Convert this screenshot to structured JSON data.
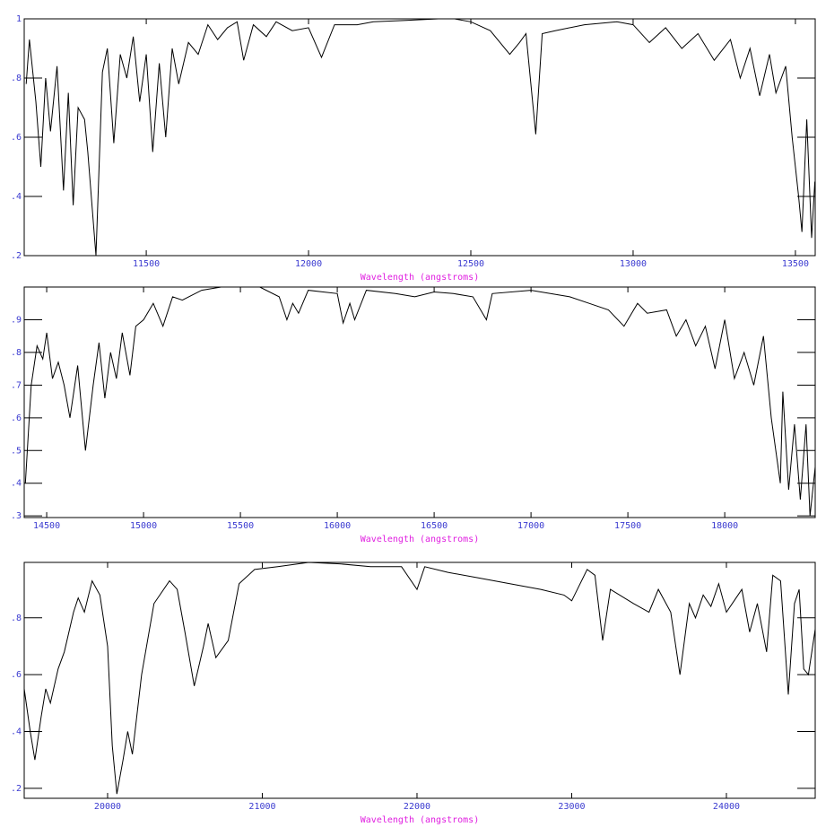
{
  "chart_data": [
    {
      "type": "line",
      "xlabel": "Wavelength (angstroms)",
      "xlim": [
        11124,
        13561
      ],
      "ylim": [
        0.2,
        1.0
      ],
      "xticks": [
        11500,
        12000,
        12500,
        13000,
        13500
      ],
      "yticks": [
        {
          "value": 0.2,
          "label": ".2"
        },
        {
          "value": 0.4,
          "label": ".4"
        },
        {
          "value": 0.6,
          "label": ".6"
        },
        {
          "value": 0.8,
          "label": ".8"
        },
        1
      ],
      "color": "#000000",
      "x": [
        11130,
        11140,
        11160,
        11175,
        11190,
        11205,
        11225,
        11245,
        11260,
        11275,
        11290,
        11310,
        11320,
        11345,
        11365,
        11380,
        11400,
        11420,
        11440,
        11460,
        11480,
        11500,
        11520,
        11540,
        11560,
        11580,
        11600,
        11630,
        11660,
        11690,
        11720,
        11750,
        11780,
        11800,
        11830,
        11870,
        11900,
        11950,
        12000,
        12040,
        12080,
        12150,
        12200,
        12300,
        12400,
        12450,
        12500,
        12560,
        12620,
        12650,
        12670,
        12700,
        12720,
        12760,
        12850,
        12950,
        13000,
        13050,
        13100,
        13150,
        13200,
        13250,
        13300,
        13330,
        13360,
        13390,
        13420,
        13440,
        13470,
        13490,
        13510,
        13520,
        13535,
        13550,
        13560
      ],
      "values": [
        0.78,
        0.93,
        0.72,
        0.5,
        0.8,
        0.62,
        0.84,
        0.42,
        0.75,
        0.37,
        0.7,
        0.66,
        0.55,
        0.2,
        0.82,
        0.9,
        0.58,
        0.88,
        0.8,
        0.94,
        0.72,
        0.88,
        0.55,
        0.85,
        0.6,
        0.9,
        0.78,
        0.92,
        0.88,
        0.98,
        0.93,
        0.97,
        0.99,
        0.86,
        0.98,
        0.94,
        0.99,
        0.96,
        0.97,
        0.87,
        0.98,
        0.98,
        0.99,
        0.995,
        1.0,
        1.0,
        0.99,
        0.96,
        0.88,
        0.92,
        0.95,
        0.61,
        0.95,
        0.96,
        0.98,
        0.99,
        0.98,
        0.92,
        0.97,
        0.9,
        0.95,
        0.86,
        0.93,
        0.8,
        0.9,
        0.74,
        0.88,
        0.75,
        0.84,
        0.6,
        0.4,
        0.28,
        0.66,
        0.26,
        0.45
      ]
    },
    {
      "type": "line",
      "xlabel": "Wavelength (angstroms)",
      "xlim": [
        14384,
        18467
      ],
      "ylim": [
        0.295,
        1.0
      ],
      "xticks": [
        14500,
        15000,
        15500,
        16000,
        16500,
        17000,
        17500,
        18000
      ],
      "yticks": [
        {
          "value": 0.3,
          "label": ".3"
        },
        {
          "value": 0.4,
          "label": ".4"
        },
        {
          "value": 0.5,
          "label": ".5"
        },
        {
          "value": 0.6,
          "label": ".6"
        },
        {
          "value": 0.7,
          "label": ".7"
        },
        {
          "value": 0.8,
          "label": ".8"
        },
        {
          "value": 0.9,
          "label": ".9"
        }
      ],
      "color": "#000000",
      "x": [
        14390,
        14420,
        14450,
        14480,
        14500,
        14530,
        14560,
        14590,
        14620,
        14660,
        14700,
        14740,
        14770,
        14800,
        14830,
        14860,
        14890,
        14930,
        14960,
        15000,
        15050,
        15100,
        15150,
        15200,
        15300,
        15400,
        15600,
        15700,
        15740,
        15770,
        15800,
        15850,
        16000,
        16030,
        16065,
        16090,
        16150,
        16300,
        16400,
        16500,
        16600,
        16700,
        16770,
        16800,
        17000,
        17200,
        17300,
        17400,
        17480,
        17550,
        17600,
        17700,
        17750,
        17800,
        17850,
        17900,
        17950,
        18000,
        18050,
        18100,
        18150,
        18200,
        18240,
        18287,
        18300,
        18330,
        18360,
        18390,
        18420,
        18440,
        18467
      ],
      "values": [
        0.4,
        0.7,
        0.82,
        0.78,
        0.86,
        0.72,
        0.77,
        0.7,
        0.6,
        0.76,
        0.5,
        0.7,
        0.83,
        0.66,
        0.8,
        0.72,
        0.86,
        0.73,
        0.88,
        0.9,
        0.95,
        0.88,
        0.97,
        0.96,
        0.99,
        1.0,
        1.0,
        0.97,
        0.9,
        0.95,
        0.92,
        0.99,
        0.98,
        0.89,
        0.95,
        0.9,
        0.99,
        0.98,
        0.97,
        0.985,
        0.98,
        0.97,
        0.9,
        0.98,
        0.99,
        0.97,
        0.95,
        0.93,
        0.88,
        0.95,
        0.92,
        0.93,
        0.85,
        0.9,
        0.82,
        0.88,
        0.75,
        0.9,
        0.72,
        0.8,
        0.7,
        0.85,
        0.6,
        0.4,
        0.68,
        0.38,
        0.58,
        0.35,
        0.58,
        0.3,
        0.45
      ]
    },
    {
      "type": "line",
      "xlabel": "Wavelength (angstroms)",
      "xlim": [
        19461,
        24574
      ],
      "ylim": [
        0.165,
        0.995
      ],
      "xticks": [
        20000,
        21000,
        22000,
        23000,
        24000
      ],
      "yticks": [
        {
          "value": 0.2,
          "label": ".2"
        },
        {
          "value": 0.4,
          "label": ".4"
        },
        {
          "value": 0.6,
          "label": ".6"
        },
        {
          "value": 0.8,
          "label": ".8"
        }
      ],
      "color": "#000000",
      "x": [
        19461,
        19500,
        19530,
        19570,
        19600,
        19630,
        19680,
        19720,
        19780,
        19810,
        19850,
        19900,
        19950,
        20000,
        20030,
        20060,
        20100,
        20130,
        20160,
        20220,
        20300,
        20400,
        20450,
        20500,
        20560,
        20620,
        20650,
        20700,
        20780,
        20850,
        20950,
        21100,
        21300,
        21500,
        21700,
        21900,
        22000,
        22050,
        22200,
        22400,
        22600,
        22800,
        22950,
        23000,
        23100,
        23150,
        23200,
        23250,
        23400,
        23500,
        23560,
        23640,
        23700,
        23760,
        23800,
        23850,
        23900,
        23950,
        24000,
        24050,
        24100,
        24150,
        24200,
        24260,
        24300,
        24350,
        24400,
        24440,
        24470,
        24500,
        24530,
        24574
      ],
      "values": [
        0.55,
        0.4,
        0.3,
        0.45,
        0.55,
        0.5,
        0.62,
        0.68,
        0.82,
        0.87,
        0.82,
        0.93,
        0.88,
        0.7,
        0.35,
        0.18,
        0.3,
        0.4,
        0.32,
        0.6,
        0.85,
        0.93,
        0.9,
        0.75,
        0.56,
        0.7,
        0.78,
        0.66,
        0.72,
        0.92,
        0.97,
        0.98,
        0.995,
        0.99,
        0.98,
        0.98,
        0.9,
        0.98,
        0.96,
        0.94,
        0.92,
        0.9,
        0.88,
        0.86,
        0.97,
        0.95,
        0.72,
        0.9,
        0.85,
        0.82,
        0.9,
        0.82,
        0.6,
        0.85,
        0.8,
        0.88,
        0.84,
        0.92,
        0.82,
        0.86,
        0.9,
        0.75,
        0.85,
        0.68,
        0.95,
        0.93,
        0.53,
        0.85,
        0.9,
        0.62,
        0.6,
        0.76
      ]
    }
  ]
}
